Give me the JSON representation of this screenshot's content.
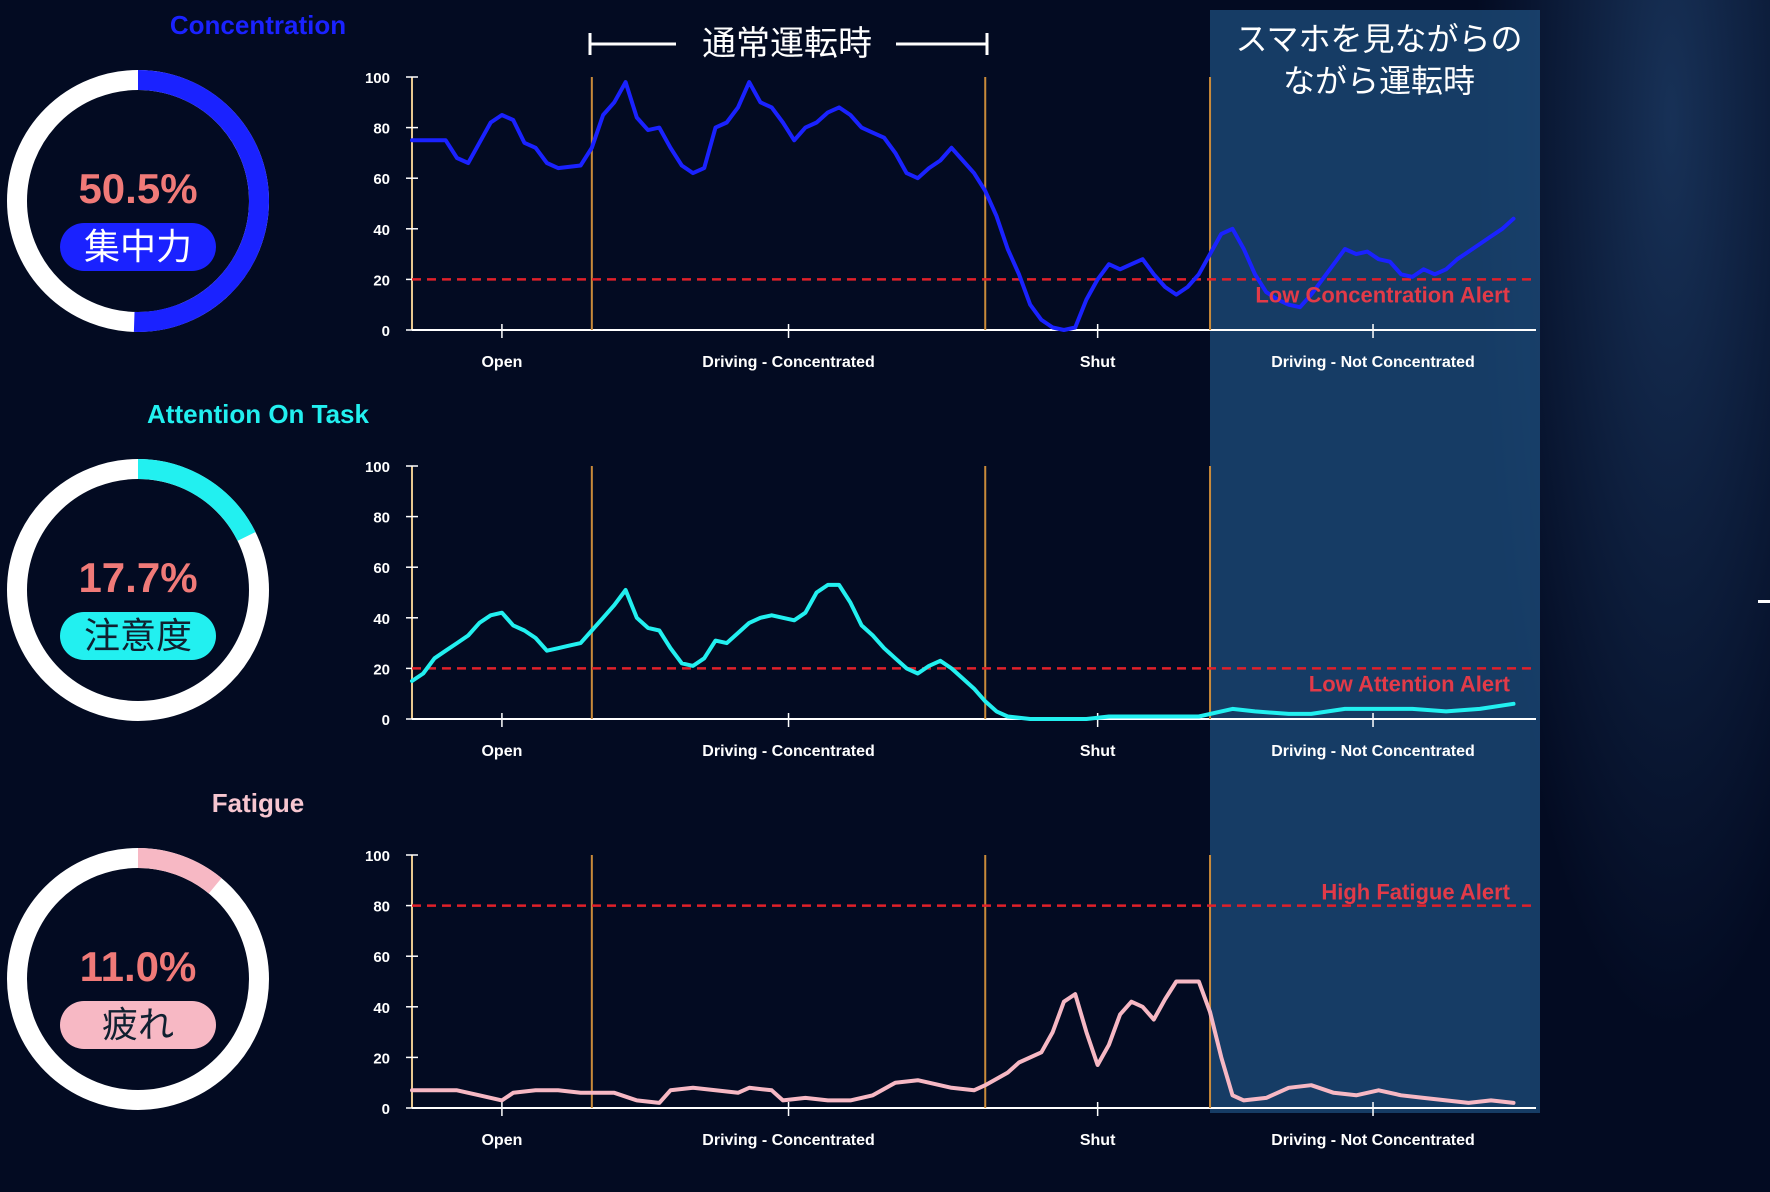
{
  "header": {
    "normal_label": "通常運転時",
    "phone_label_line1": "スマホを見ながらの",
    "phone_label_line2": "ながら運転時"
  },
  "colors": {
    "background": "#030b22",
    "concentration": "#1a22ff",
    "attention": "#22f0f0",
    "fatigue": "#f7b8c4",
    "alert": "#e0202a",
    "percent": "#f07a78",
    "phase_divider": "#c98a3a",
    "highlight": "#1c4a78"
  },
  "panels": [
    {
      "id": "concentration",
      "title": "Concentration",
      "gauge": {
        "percent_text": "50.5%",
        "fraction": 0.505,
        "jp_label": "集中力"
      }
    },
    {
      "id": "attention",
      "title": "Attention On Task",
      "gauge": {
        "percent_text": "17.7%",
        "fraction": 0.177,
        "jp_label": "注意度"
      }
    },
    {
      "id": "fatigue",
      "title": "Fatigue",
      "gauge": {
        "percent_text": "11.0%",
        "fraction": 0.11,
        "jp_label": "疲れ"
      }
    }
  ],
  "chart_data": [
    {
      "type": "line",
      "ylim": [
        0,
        100
      ],
      "yticks": [
        "0",
        "20",
        "40",
        "60",
        "80",
        "100"
      ],
      "xlim": [
        0,
        100
      ],
      "phases": [
        "Open",
        "Driving - Concentrated",
        "Shut",
        "Driving - Not Concentrated"
      ],
      "phase_boundaries": [
        16,
        51,
        71
      ],
      "highlight_range": [
        71,
        100
      ],
      "alert": {
        "label": "Low Concentration Alert",
        "value": 20
      },
      "series": [
        {
          "color": "#1a22ff",
          "points": [
            [
              0,
              75
            ],
            [
              3,
              75
            ],
            [
              4,
              68
            ],
            [
              5,
              66
            ],
            [
              6,
              74
            ],
            [
              7,
              82
            ],
            [
              8,
              85
            ],
            [
              9,
              83
            ],
            [
              10,
              74
            ],
            [
              11,
              72
            ],
            [
              12,
              66
            ],
            [
              13,
              64
            ],
            [
              15,
              65
            ],
            [
              16,
              72
            ],
            [
              17,
              85
            ],
            [
              18,
              90
            ],
            [
              19,
              98
            ],
            [
              20,
              84
            ],
            [
              21,
              79
            ],
            [
              22,
              80
            ],
            [
              23,
              72
            ],
            [
              24,
              65
            ],
            [
              25,
              62
            ],
            [
              26,
              64
            ],
            [
              27,
              80
            ],
            [
              28,
              82
            ],
            [
              29,
              88
            ],
            [
              30,
              98
            ],
            [
              31,
              90
            ],
            [
              32,
              88
            ],
            [
              33,
              82
            ],
            [
              34,
              75
            ],
            [
              35,
              80
            ],
            [
              36,
              82
            ],
            [
              37,
              86
            ],
            [
              38,
              88
            ],
            [
              39,
              85
            ],
            [
              40,
              80
            ],
            [
              41,
              78
            ],
            [
              42,
              76
            ],
            [
              43,
              70
            ],
            [
              44,
              62
            ],
            [
              45,
              60
            ],
            [
              46,
              64
            ],
            [
              47,
              67
            ],
            [
              48,
              72
            ],
            [
              49,
              67
            ],
            [
              50,
              62
            ],
            [
              51,
              55
            ],
            [
              52,
              45
            ],
            [
              53,
              32
            ],
            [
              54,
              22
            ],
            [
              55,
              10
            ],
            [
              56,
              4
            ],
            [
              57,
              1
            ],
            [
              58,
              0
            ],
            [
              59,
              1
            ],
            [
              60,
              12
            ],
            [
              61,
              20
            ],
            [
              62,
              26
            ],
            [
              63,
              24
            ],
            [
              64,
              26
            ],
            [
              65,
              28
            ],
            [
              66,
              22
            ],
            [
              67,
              17
            ],
            [
              68,
              14
            ],
            [
              69,
              17
            ],
            [
              70,
              22
            ],
            [
              71,
              30
            ],
            [
              72,
              38
            ],
            [
              73,
              40
            ],
            [
              74,
              32
            ],
            [
              75,
              22
            ],
            [
              76,
              15
            ],
            [
              77,
              12
            ],
            [
              78,
              10
            ],
            [
              79,
              9
            ],
            [
              80,
              14
            ],
            [
              81,
              20
            ],
            [
              82,
              26
            ],
            [
              83,
              32
            ],
            [
              84,
              30
            ],
            [
              85,
              31
            ],
            [
              86,
              28
            ],
            [
              87,
              27
            ],
            [
              88,
              22
            ],
            [
              89,
              21
            ],
            [
              90,
              24
            ],
            [
              91,
              22
            ],
            [
              92,
              24
            ],
            [
              93,
              28
            ],
            [
              94,
              31
            ],
            [
              95,
              34
            ],
            [
              96,
              37
            ],
            [
              97,
              40
            ],
            [
              98,
              44
            ]
          ]
        }
      ]
    },
    {
      "type": "line",
      "ylim": [
        0,
        100
      ],
      "yticks": [
        "0",
        "20",
        "40",
        "60",
        "80",
        "100"
      ],
      "xlim": [
        0,
        100
      ],
      "phases": [
        "Open",
        "Driving - Concentrated",
        "Shut",
        "Driving - Not Concentrated"
      ],
      "phase_boundaries": [
        16,
        51,
        71
      ],
      "highlight_range": [
        71,
        100
      ],
      "alert": {
        "label": "Low Attention Alert",
        "value": 20
      },
      "series": [
        {
          "color": "#22f0f0",
          "points": [
            [
              0,
              15
            ],
            [
              1,
              18
            ],
            [
              2,
              24
            ],
            [
              3,
              27
            ],
            [
              4,
              30
            ],
            [
              5,
              33
            ],
            [
              6,
              38
            ],
            [
              7,
              41
            ],
            [
              8,
              42
            ],
            [
              9,
              37
            ],
            [
              10,
              35
            ],
            [
              11,
              32
            ],
            [
              12,
              27
            ],
            [
              13,
              28
            ],
            [
              14,
              29
            ],
            [
              15,
              30
            ],
            [
              16,
              35
            ],
            [
              17,
              40
            ],
            [
              18,
              45
            ],
            [
              19,
              51
            ],
            [
              20,
              40
            ],
            [
              21,
              36
            ],
            [
              22,
              35
            ],
            [
              23,
              28
            ],
            [
              24,
              22
            ],
            [
              25,
              21
            ],
            [
              26,
              24
            ],
            [
              27,
              31
            ],
            [
              28,
              30
            ],
            [
              29,
              34
            ],
            [
              30,
              38
            ],
            [
              31,
              40
            ],
            [
              32,
              41
            ],
            [
              33,
              40
            ],
            [
              34,
              39
            ],
            [
              35,
              42
            ],
            [
              36,
              50
            ],
            [
              37,
              53
            ],
            [
              38,
              53
            ],
            [
              39,
              46
            ],
            [
              40,
              37
            ],
            [
              41,
              33
            ],
            [
              42,
              28
            ],
            [
              43,
              24
            ],
            [
              44,
              20
            ],
            [
              45,
              18
            ],
            [
              46,
              21
            ],
            [
              47,
              23
            ],
            [
              48,
              20
            ],
            [
              49,
              16
            ],
            [
              50,
              12
            ],
            [
              51,
              7
            ],
            [
              52,
              3
            ],
            [
              53,
              1
            ],
            [
              55,
              0
            ],
            [
              60,
              0
            ],
            [
              62,
              1
            ],
            [
              66,
              1
            ],
            [
              70,
              1
            ],
            [
              72,
              3
            ],
            [
              73,
              4
            ],
            [
              75,
              3
            ],
            [
              78,
              2
            ],
            [
              80,
              2
            ],
            [
              83,
              4
            ],
            [
              86,
              4
            ],
            [
              89,
              4
            ],
            [
              92,
              3
            ],
            [
              95,
              4
            ],
            [
              98,
              6
            ]
          ]
        }
      ]
    },
    {
      "type": "line",
      "ylim": [
        0,
        100
      ],
      "yticks": [
        "0",
        "20",
        "40",
        "60",
        "80",
        "100"
      ],
      "xlim": [
        0,
        100
      ],
      "phases": [
        "Open",
        "Driving - Concentrated",
        "Shut",
        "Driving - Not Concentrated"
      ],
      "phase_boundaries": [
        16,
        51,
        71
      ],
      "highlight_range": [
        71,
        100
      ],
      "alert": {
        "label": "High Fatigue Alert",
        "value": 80
      },
      "series": [
        {
          "color": "#f7b8c4",
          "points": [
            [
              0,
              7
            ],
            [
              2,
              7
            ],
            [
              4,
              7
            ],
            [
              6,
              5
            ],
            [
              8,
              3
            ],
            [
              9,
              6
            ],
            [
              11,
              7
            ],
            [
              13,
              7
            ],
            [
              15,
              6
            ],
            [
              16,
              6
            ],
            [
              18,
              6
            ],
            [
              20,
              3
            ],
            [
              22,
              2
            ],
            [
              23,
              7
            ],
            [
              25,
              8
            ],
            [
              27,
              7
            ],
            [
              29,
              6
            ],
            [
              30,
              8
            ],
            [
              32,
              7
            ],
            [
              33,
              3
            ],
            [
              35,
              4
            ],
            [
              37,
              3
            ],
            [
              39,
              3
            ],
            [
              41,
              5
            ],
            [
              43,
              10
            ],
            [
              45,
              11
            ],
            [
              46,
              10
            ],
            [
              48,
              8
            ],
            [
              50,
              7
            ],
            [
              51,
              9
            ],
            [
              53,
              14
            ],
            [
              54,
              18
            ],
            [
              56,
              22
            ],
            [
              57,
              30
            ],
            [
              58,
              42
            ],
            [
              59,
              45
            ],
            [
              60,
              30
            ],
            [
              61,
              17
            ],
            [
              62,
              25
            ],
            [
              63,
              37
            ],
            [
              64,
              42
            ],
            [
              65,
              40
            ],
            [
              66,
              35
            ],
            [
              67,
              43
            ],
            [
              68,
              50
            ],
            [
              69,
              50
            ],
            [
              70,
              50
            ],
            [
              71,
              38
            ],
            [
              72,
              20
            ],
            [
              73,
              5
            ],
            [
              74,
              3
            ],
            [
              76,
              4
            ],
            [
              78,
              8
            ],
            [
              80,
              9
            ],
            [
              82,
              6
            ],
            [
              84,
              5
            ],
            [
              86,
              7
            ],
            [
              88,
              5
            ],
            [
              90,
              4
            ],
            [
              92,
              3
            ],
            [
              94,
              2
            ],
            [
              96,
              3
            ],
            [
              98,
              2
            ]
          ]
        }
      ]
    }
  ]
}
